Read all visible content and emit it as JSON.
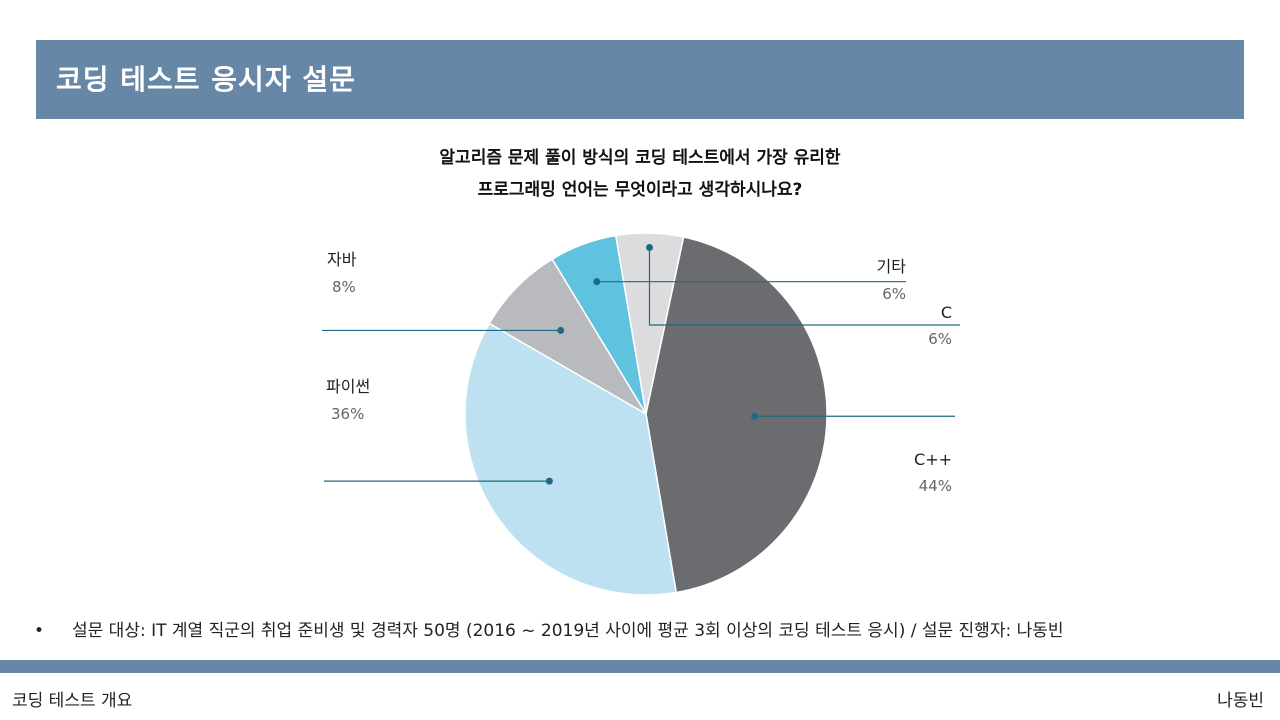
{
  "header": {
    "title": "코딩 테스트 응시자 설문"
  },
  "chart_data": {
    "type": "pie",
    "title_lines": [
      "알고리즘 문제 풀이 방식의 코딩 테스트에서 가장 유리한",
      "프로그래밍 언어는 무엇이라고 생각하시나요?"
    ],
    "slices": [
      {
        "label": "자바",
        "value": 8,
        "pct_label": "8%",
        "color": "#b8babe"
      },
      {
        "label": "기타",
        "value": 6,
        "pct_label": "6%",
        "color": "#5fc3df"
      },
      {
        "label": "C",
        "value": 6,
        "pct_label": "6%",
        "color": "#dcdcde"
      },
      {
        "label": "C++",
        "value": 44,
        "pct_label": "44%",
        "color": "#6b6c70"
      },
      {
        "label": "파이썬",
        "value": 36,
        "pct_label": "36%",
        "color": "#bde1f1"
      }
    ],
    "leader_color": "#1f6a82"
  },
  "footnote": {
    "bullet": "•",
    "text": "설문 대상: IT 계열 직군의 취업 준비생 및 경력자 50명 (2016 ~ 2019년 사이에 평균 3회 이상의 코딩 테스트 응시) / 설문 진행자: 나동빈"
  },
  "footer": {
    "left": "코딩 테스트 개요",
    "right": "나동빈"
  }
}
